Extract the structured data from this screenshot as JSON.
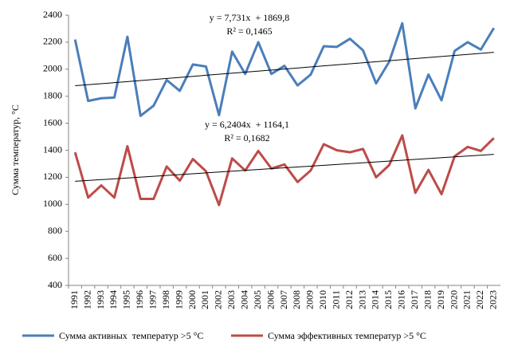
{
  "chart_data": {
    "type": "line",
    "y_label": "Сумма температур, °С",
    "categories": [
      "1991",
      "1992",
      "1993",
      "1994",
      "1995",
      "1996",
      "1997",
      "1998",
      "1999",
      "2000",
      "2001",
      "2002",
      "2003",
      "2004",
      "2005",
      "2006",
      "2007",
      "2008",
      "2009",
      "2010",
      "2011",
      "2012",
      "2013",
      "2014",
      "2015",
      "2016",
      "2017",
      "2018",
      "2019",
      "2020",
      "2021",
      "2022",
      "2023"
    ],
    "series": [
      {
        "name": "Сумма активных  температур >5 °С",
        "color": "#4a7ebb",
        "values": [
          2220,
          1765,
          1785,
          1790,
          2240,
          1655,
          1730,
          1920,
          1840,
          2035,
          2020,
          1660,
          2130,
          1965,
          2200,
          1965,
          2025,
          1880,
          1960,
          2170,
          2165,
          2225,
          2140,
          1895,
          2055,
          2340,
          1710,
          1960,
          1770,
          2135,
          2200,
          2145,
          2305
        ]
      },
      {
        "name": "Сумма эффективных температур >5 °С",
        "color": "#be4b48",
        "values": [
          1385,
          1050,
          1140,
          1050,
          1430,
          1040,
          1040,
          1280,
          1175,
          1335,
          1245,
          995,
          1340,
          1250,
          1395,
          1265,
          1295,
          1165,
          1250,
          1445,
          1400,
          1385,
          1410,
          1200,
          1290,
          1510,
          1085,
          1255,
          1075,
          1355,
          1425,
          1395,
          1490
        ]
      }
    ],
    "trendlines": [
      {
        "slope": 7.731,
        "intercept": 1869.8,
        "equation": "y = 7,731x  + 1869,8",
        "r2": "R² = 0,1465",
        "color": "#000000"
      },
      {
        "slope": 6.2404,
        "intercept": 1164.1,
        "equation": "y = 6,2404x  + 1164,1",
        "r2": "R² = 0,1682",
        "color": "#000000"
      }
    ],
    "ylim": [
      400,
      2400
    ],
    "yticks": [
      400,
      600,
      800,
      1000,
      1200,
      1400,
      1600,
      1800,
      2000,
      2200,
      2400
    ],
    "grid": false,
    "legend": "bottom"
  }
}
